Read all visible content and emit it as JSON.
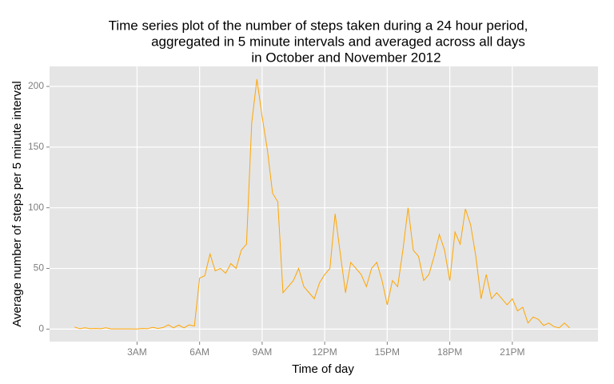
{
  "chart_data": {
    "type": "line",
    "title": [
      "Time series plot of the number of steps taken during a 24 hour period,",
      "aggregated in 5 minute intervals and averaged across all days",
      "in October and November 2012"
    ],
    "x_label": "Time of day",
    "y_label": "Average number of steps per 5 minute interval",
    "x": [
      0,
      0.25,
      0.5,
      0.75,
      1,
      1.25,
      1.5,
      1.75,
      2,
      2.25,
      2.5,
      2.75,
      3,
      3.25,
      3.5,
      3.75,
      4,
      4.25,
      4.5,
      4.75,
      5,
      5.25,
      5.5,
      5.75,
      6,
      6.25,
      6.5,
      6.75,
      7,
      7.25,
      7.5,
      7.75,
      8,
      8.25,
      8.5,
      8.75,
      9,
      9.25,
      9.5,
      9.75,
      10,
      10.25,
      10.5,
      10.75,
      11,
      11.25,
      11.5,
      11.75,
      12,
      12.25,
      12.5,
      12.75,
      13,
      13.25,
      13.5,
      13.75,
      14,
      14.25,
      14.5,
      14.75,
      15,
      15.25,
      15.5,
      15.75,
      16,
      16.25,
      16.5,
      16.75,
      17,
      17.25,
      17.5,
      17.75,
      18,
      18.25,
      18.5,
      18.75,
      19,
      19.25,
      19.5,
      19.75,
      20,
      20.25,
      20.5,
      20.75,
      21,
      21.25,
      21.5,
      21.75,
      22,
      22.25,
      22.5,
      22.75,
      23,
      23.25,
      23.5,
      23.75
    ],
    "series": [
      {
        "color": "#FFA500",
        "values": [
          1.7,
          0.3,
          1.1,
          0.3,
          0.5,
          0.3,
          1.1,
          0.2,
          0.2,
          0.2,
          0.2,
          0.2,
          0.1,
          0.5,
          0.3,
          1.5,
          0.5,
          1.3,
          3.5,
          1.0,
          3.3,
          1.0,
          3.5,
          2.5,
          42,
          44,
          62,
          48,
          50,
          46,
          54,
          50,
          65,
          70,
          170,
          206,
          175,
          148,
          112,
          105,
          30,
          35,
          40,
          50,
          35,
          30,
          25,
          38,
          45,
          50,
          95,
          62,
          30,
          55,
          50,
          45,
          35,
          50,
          55,
          40,
          20,
          40,
          35,
          65,
          100,
          65,
          60,
          40,
          45,
          60,
          78,
          65,
          40,
          80,
          70,
          99,
          86,
          60,
          25,
          45,
          25,
          30,
          25,
          20,
          25,
          15,
          18,
          5,
          10,
          8,
          3,
          5,
          2,
          1,
          5,
          1
        ]
      }
    ],
    "xlim": [
      -1.196,
      25.11
    ],
    "ylim": [
      -10.3,
      216.5
    ],
    "xticks": [
      {
        "value": 3,
        "label": "3AM"
      },
      {
        "value": 6,
        "label": "6AM"
      },
      {
        "value": 9,
        "label": "9AM"
      },
      {
        "value": 12,
        "label": "12PM"
      },
      {
        "value": 15,
        "label": "15PM"
      },
      {
        "value": 18,
        "label": "18PM"
      },
      {
        "value": 21,
        "label": "21PM"
      }
    ],
    "yticks": [
      0,
      50,
      100,
      150,
      200
    ],
    "grid": true
  }
}
